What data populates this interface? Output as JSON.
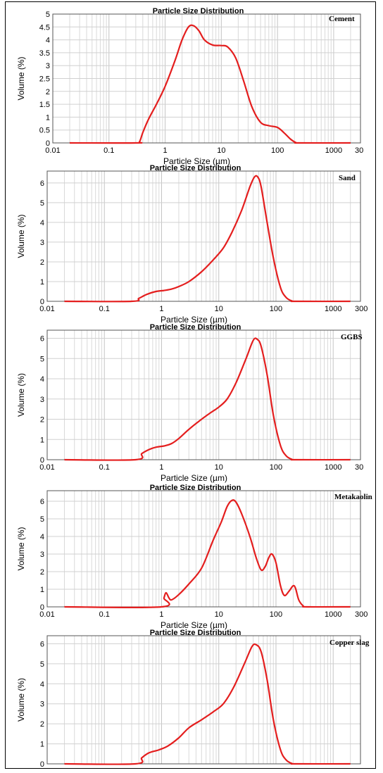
{
  "chart_data": [
    {
      "type": "line",
      "title": "Particle Size Distribution",
      "series": [
        {
          "name": "Cement",
          "color": "#e41e1e",
          "points": [
            [
              0.02,
              0
            ],
            [
              0.3,
              0
            ],
            [
              0.35,
              0.05
            ],
            [
              0.4,
              0.4
            ],
            [
              0.5,
              0.9
            ],
            [
              0.7,
              1.5
            ],
            [
              1,
              2.2
            ],
            [
              1.5,
              3.2
            ],
            [
              2,
              4.0
            ],
            [
              2.6,
              4.5
            ],
            [
              3.2,
              4.55
            ],
            [
              4,
              4.35
            ],
            [
              5,
              4.0
            ],
            [
              7,
              3.8
            ],
            [
              10,
              3.78
            ],
            [
              13,
              3.72
            ],
            [
              18,
              3.3
            ],
            [
              25,
              2.4
            ],
            [
              35,
              1.4
            ],
            [
              50,
              0.8
            ],
            [
              70,
              0.67
            ],
            [
              100,
              0.6
            ],
            [
              130,
              0.4
            ],
            [
              170,
              0.15
            ],
            [
              210,
              0.02
            ],
            [
              250,
              0
            ],
            [
              2000,
              0
            ]
          ]
        }
      ],
      "xlabel": "Particle Size (µm)",
      "ylabel": "Volume (%)",
      "xlim": [
        0.01,
        3000
      ],
      "ylim": [
        0,
        5
      ],
      "x_scale": "log",
      "xticks": [
        "0.01",
        "0.1",
        "1",
        "10",
        "100",
        "1000",
        "30"
      ],
      "yticks": [
        "0",
        "0.5",
        "1",
        "1.5",
        "2",
        "2.5",
        "3",
        "3.5",
        "4",
        "4.5",
        "5"
      ],
      "grid": true
    },
    {
      "type": "line",
      "title": "Particle Size Distribution",
      "series": [
        {
          "name": "Sand",
          "color": "#e41e1e",
          "points": [
            [
              0.02,
              0
            ],
            [
              0.3,
              0
            ],
            [
              0.4,
              0.15
            ],
            [
              0.55,
              0.35
            ],
            [
              0.8,
              0.5
            ],
            [
              1.1,
              0.55
            ],
            [
              1.5,
              0.62
            ],
            [
              2,
              0.75
            ],
            [
              3,
              1.0
            ],
            [
              5,
              1.5
            ],
            [
              8,
              2.1
            ],
            [
              12,
              2.7
            ],
            [
              17,
              3.5
            ],
            [
              25,
              4.6
            ],
            [
              35,
              5.8
            ],
            [
              42,
              6.3
            ],
            [
              48,
              6.3
            ],
            [
              55,
              5.8
            ],
            [
              70,
              4.0
            ],
            [
              90,
              2.2
            ],
            [
              120,
              0.7
            ],
            [
              150,
              0.2
            ],
            [
              190,
              0.02
            ],
            [
              230,
              0
            ],
            [
              2000,
              0
            ]
          ]
        }
      ],
      "xlabel": "Particle Size (µm)",
      "ylabel": "Volume (%)",
      "xlim": [
        0.01,
        3000
      ],
      "ylim": [
        0,
        6.6
      ],
      "x_scale": "log",
      "xticks": [
        "0.01",
        "0.1",
        "1",
        "10",
        "100",
        "1000",
        "300"
      ],
      "yticks": [
        "0",
        "1",
        "2",
        "3",
        "4",
        "5",
        "6"
      ],
      "grid": true
    },
    {
      "type": "line",
      "title": "Particle Size Distribution",
      "series": [
        {
          "name": "GGBS",
          "color": "#e41e1e",
          "points": [
            [
              0.02,
              0
            ],
            [
              0.35,
              0
            ],
            [
              0.45,
              0.3
            ],
            [
              0.6,
              0.5
            ],
            [
              0.8,
              0.62
            ],
            [
              1.1,
              0.68
            ],
            [
              1.5,
              0.8
            ],
            [
              2,
              1.05
            ],
            [
              3,
              1.5
            ],
            [
              4.5,
              1.9
            ],
            [
              7,
              2.3
            ],
            [
              10,
              2.6
            ],
            [
              14,
              3.0
            ],
            [
              20,
              3.8
            ],
            [
              30,
              5.0
            ],
            [
              40,
              5.9
            ],
            [
              47,
              5.95
            ],
            [
              55,
              5.6
            ],
            [
              70,
              4.2
            ],
            [
              90,
              2.2
            ],
            [
              120,
              0.7
            ],
            [
              150,
              0.2
            ],
            [
              190,
              0.02
            ],
            [
              230,
              0
            ],
            [
              2000,
              0
            ]
          ]
        }
      ],
      "xlabel": "Particle Size (µm)",
      "ylabel": "Volume (%)",
      "xlim": [
        0.01,
        3000
      ],
      "ylim": [
        0,
        6.4
      ],
      "x_scale": "log",
      "xticks": [
        "0.01",
        "0.1",
        "1",
        "10",
        "100",
        "1000",
        "30"
      ],
      "yticks": [
        "0",
        "1",
        "2",
        "3",
        "4",
        "5",
        "6"
      ],
      "grid": true
    },
    {
      "type": "line",
      "title": "Particle Size Distribution",
      "series": [
        {
          "name": "Metakaolin",
          "color": "#e41e1e",
          "points": [
            [
              0.02,
              0
            ],
            [
              1.0,
              0
            ],
            [
              1.1,
              0.5
            ],
            [
              1.2,
              0.8
            ],
            [
              1.35,
              0.5
            ],
            [
              1.5,
              0.4
            ],
            [
              2,
              0.7
            ],
            [
              3,
              1.3
            ],
            [
              5,
              2.2
            ],
            [
              8,
              3.8
            ],
            [
              11,
              4.8
            ],
            [
              14,
              5.7
            ],
            [
              17,
              6.05
            ],
            [
              20,
              5.95
            ],
            [
              25,
              5.3
            ],
            [
              35,
              4.0
            ],
            [
              45,
              2.8
            ],
            [
              55,
              2.1
            ],
            [
              65,
              2.3
            ],
            [
              75,
              2.8
            ],
            [
              85,
              3.0
            ],
            [
              100,
              2.5
            ],
            [
              120,
              1.2
            ],
            [
              140,
              0.65
            ],
            [
              170,
              0.9
            ],
            [
              200,
              1.2
            ],
            [
              220,
              1.05
            ],
            [
              250,
              0.4
            ],
            [
              300,
              0.05
            ],
            [
              350,
              0
            ],
            [
              2000,
              0
            ]
          ]
        }
      ],
      "xlabel": "Particle Size (µm)",
      "ylabel": "Volume (%)",
      "xlim": [
        0.01,
        3000
      ],
      "ylim": [
        0,
        6.6
      ],
      "x_scale": "log",
      "xticks": [
        "0.01",
        "0.1",
        "1",
        "10",
        "100",
        "1000",
        "300"
      ],
      "yticks": [
        "0",
        "1",
        "2",
        "3",
        "4",
        "5",
        "6"
      ],
      "grid": true
    },
    {
      "type": "line",
      "title": "Particle Size Distribution",
      "series": [
        {
          "name": "Copper slag",
          "color": "#e41e1e",
          "points": [
            [
              0.02,
              0
            ],
            [
              0.35,
              0
            ],
            [
              0.45,
              0.3
            ],
            [
              0.6,
              0.55
            ],
            [
              0.9,
              0.7
            ],
            [
              1.3,
              0.9
            ],
            [
              2,
              1.3
            ],
            [
              3,
              1.8
            ],
            [
              5,
              2.2
            ],
            [
              8,
              2.6
            ],
            [
              12,
              3.0
            ],
            [
              18,
              3.8
            ],
            [
              28,
              5.0
            ],
            [
              38,
              5.85
            ],
            [
              45,
              5.95
            ],
            [
              55,
              5.6
            ],
            [
              70,
              4.2
            ],
            [
              90,
              2.2
            ],
            [
              120,
              0.7
            ],
            [
              150,
              0.2
            ],
            [
              190,
              0.02
            ],
            [
              230,
              0
            ],
            [
              2000,
              0
            ]
          ]
        }
      ],
      "xlabel": "",
      "ylabel": "Volume (%)",
      "xlim": [
        0.01,
        3000
      ],
      "ylim": [
        0,
        6.4
      ],
      "x_scale": "log",
      "xticks": [],
      "yticks": [
        "0",
        "1",
        "2",
        "3",
        "4",
        "5",
        "6"
      ],
      "grid": true
    }
  ]
}
